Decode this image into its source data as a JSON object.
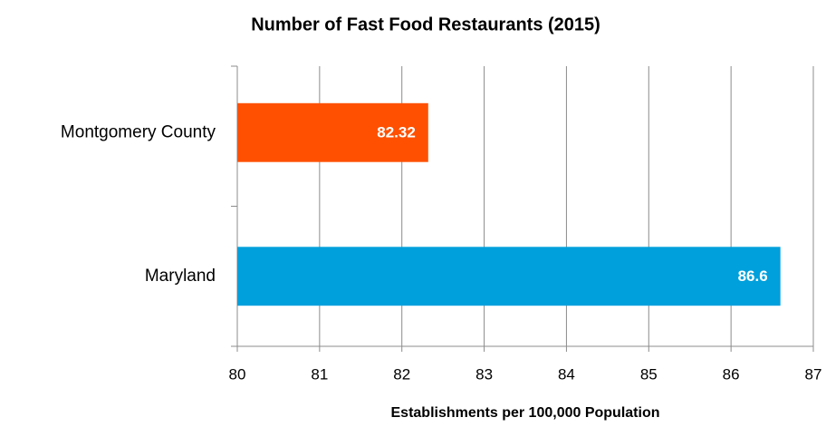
{
  "chart_data": {
    "type": "bar",
    "orientation": "horizontal",
    "title": "Number of Fast Food Restaurants (2015)",
    "x_label": "Establishments per 100,000 Population",
    "categories": [
      "Montgomery County",
      "Maryland"
    ],
    "values": [
      82.32,
      86.6
    ],
    "colors": [
      "#fe5000",
      "#00a0dc"
    ],
    "xlim": [
      80,
      87
    ],
    "xticks": [
      80,
      81,
      82,
      83,
      84,
      85,
      86,
      87
    ],
    "grid": true
  }
}
